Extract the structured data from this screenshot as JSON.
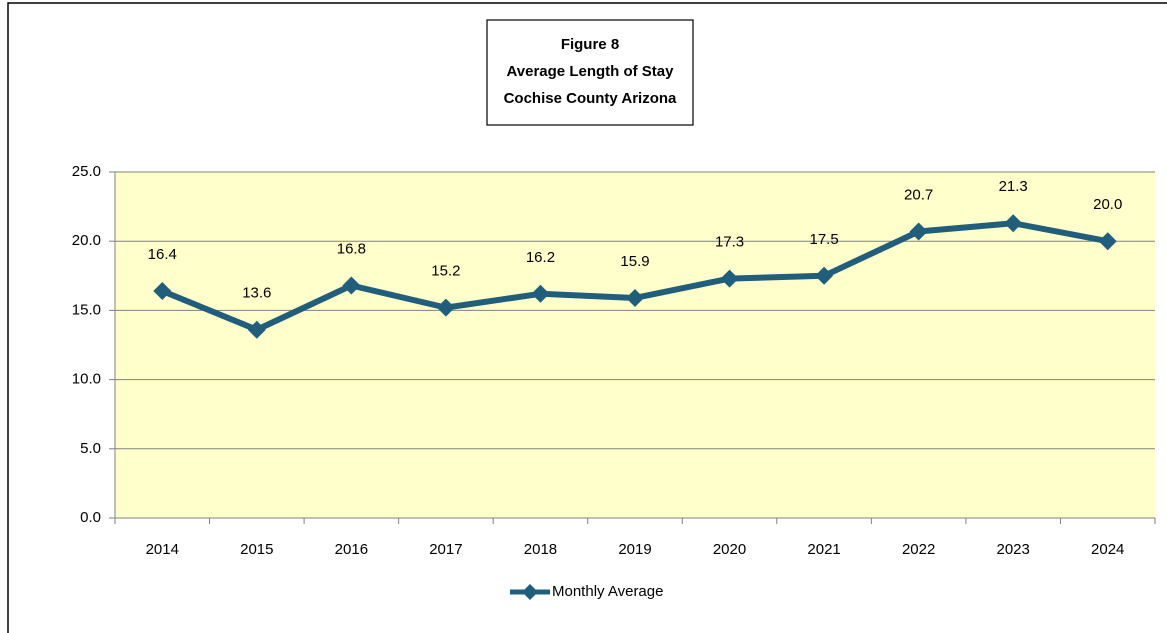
{
  "chart_data": {
    "type": "line",
    "title": [
      "Figure 8",
      "Average Length of Stay",
      "Cochise County Arizona"
    ],
    "categories": [
      "2014",
      "2015",
      "2016",
      "2017",
      "2018",
      "2019",
      "2020",
      "2021",
      "2022",
      "2023",
      "2024"
    ],
    "series": [
      {
        "name": "Monthly Average",
        "color": "#215e7c",
        "values": [
          16.4,
          13.6,
          16.8,
          15.2,
          16.2,
          15.9,
          17.3,
          17.5,
          20.7,
          21.3,
          20.0
        ],
        "value_labels": [
          "16.4",
          "13.6",
          "16.8",
          "15.2",
          "16.2",
          "15.9",
          "17.3",
          "17.5",
          "20.7",
          "21.3",
          "20.0"
        ]
      }
    ],
    "ylim": [
      0,
      25
    ],
    "yticks": [
      {
        "value": 0,
        "label": "0.0"
      },
      {
        "value": 5,
        "label": "5.0"
      },
      {
        "value": 10,
        "label": "10.0"
      },
      {
        "value": 15,
        "label": "15.0"
      },
      {
        "value": 20,
        "label": "20.0"
      },
      {
        "value": 25,
        "label": "25.0"
      }
    ],
    "grid": true,
    "legend": "bottom",
    "plot_background": "#ffffcc"
  }
}
